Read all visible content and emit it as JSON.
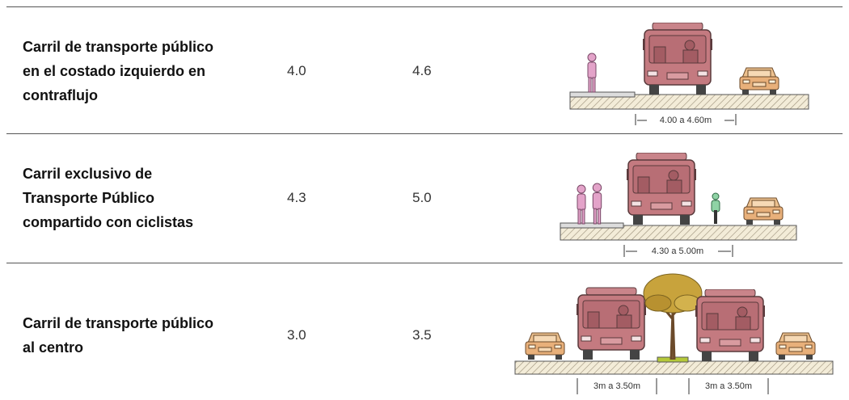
{
  "table": {
    "rows": [
      {
        "name": "Carril de transporte público en el costado izquierdo en contraflujo",
        "min": "4.0",
        "max": "4.6",
        "dimensions": [
          "4.00 a 4.60m"
        ]
      },
      {
        "name": "Carril exclusivo de Transporte Público compartido con ciclistas",
        "min": "4.3",
        "max": "5.0",
        "dimensions": [
          "4.30 a 5.00m"
        ]
      },
      {
        "name": "Carril de transporte público al centro",
        "min": "3.0",
        "max": "3.5",
        "dimensions": [
          "3m a 3.50m",
          "3m a 3.50m"
        ]
      }
    ]
  }
}
